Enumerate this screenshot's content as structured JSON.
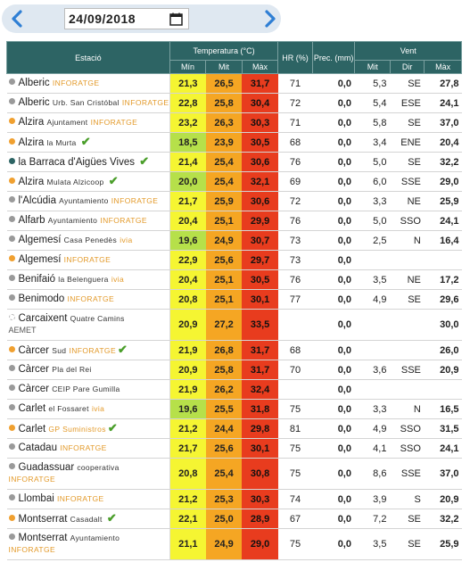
{
  "date": "24/09/2018",
  "header": {
    "station": "Estació",
    "temp": "Temperatura (°C)",
    "hr": "HR (%)",
    "prec": "Prec. (mm)",
    "wind": "Vent",
    "tmin": "Mín",
    "tmit": "Mit",
    "tmax": "Màx",
    "vmit": "Mit",
    "vdir": "Dir",
    "vmax": "Màx"
  },
  "colors": {
    "grey_dot": "#9a9a9a",
    "orange_dot": "#f0a030",
    "teal_dot": "#2d6464",
    "check": "#4a9e2a"
  },
  "rows": [
    {
      "name": "Alberic",
      "sub": "",
      "brand": "INFORATGE",
      "dot": "grey",
      "check": false,
      "tmin": "21,3",
      "tmit": "26,5",
      "tmax": "31,7",
      "hr": "71",
      "prec": "0,0",
      "vmit": "5,3",
      "vdir": "SE",
      "vmax": "27,8"
    },
    {
      "name": "Alberic",
      "sub": "Urb. San Cristóbal",
      "brand": "INFORATGE",
      "dot": "grey",
      "check": false,
      "tmin": "22,8",
      "tmit": "25,8",
      "tmax": "30,4",
      "hr": "72",
      "prec": "0,0",
      "vmit": "5,4",
      "vdir": "ESE",
      "vmax": "24,1"
    },
    {
      "name": "Alzira",
      "sub": "Ajuntament",
      "brand": "INFORATGE",
      "dot": "orange",
      "check": false,
      "tmin": "23,2",
      "tmit": "26,3",
      "tmax": "30,3",
      "hr": "71",
      "prec": "0,0",
      "vmit": "5,8",
      "vdir": "SE",
      "vmax": "37,0"
    },
    {
      "name": "Alzira",
      "sub": "la Murta",
      "brand": "",
      "dot": "orange",
      "check": true,
      "tmin": "18,5",
      "tmit": "23,9",
      "tmax": "30,5",
      "hr": "68",
      "prec": "0,0",
      "vmit": "3,4",
      "vdir": "ENE",
      "vmax": "20,4"
    },
    {
      "name": "la Barraca d'Aigües Vives",
      "sub": "",
      "brand": "",
      "dot": "teal",
      "check": true,
      "tmin": "21,4",
      "tmit": "25,4",
      "tmax": "30,6",
      "hr": "76",
      "prec": "0,0",
      "vmit": "5,0",
      "vdir": "SE",
      "vmax": "32,2"
    },
    {
      "name": "Alzira",
      "sub": "Mulata Alzicoop",
      "brand": "",
      "dot": "orange",
      "check": true,
      "tmin": "20,0",
      "tmit": "25,4",
      "tmax": "32,1",
      "hr": "69",
      "prec": "0,0",
      "vmit": "6,0",
      "vdir": "SSE",
      "vmax": "29,0"
    },
    {
      "name": "l'Alcúdia",
      "sub": "Ayuntamiento",
      "brand": "INFORATGE",
      "dot": "grey",
      "check": false,
      "tmin": "21,7",
      "tmit": "25,9",
      "tmax": "30,6",
      "hr": "72",
      "prec": "0,0",
      "vmit": "3,3",
      "vdir": "NE",
      "vmax": "25,9"
    },
    {
      "name": "Alfarb",
      "sub": "Ayuntamiento",
      "brand": "INFORATGE",
      "dot": "grey",
      "check": false,
      "tmin": "20,4",
      "tmit": "25,1",
      "tmax": "29,9",
      "hr": "76",
      "prec": "0,0",
      "vmit": "5,0",
      "vdir": "SSO",
      "vmax": "24,1"
    },
    {
      "name": "Algemesí",
      "sub": "Casa Penedès",
      "brand": "ivia",
      "dot": "grey",
      "check": false,
      "tmin": "19,6",
      "tmit": "24,9",
      "tmax": "30,7",
      "hr": "73",
      "prec": "0,0",
      "vmit": "2,5",
      "vdir": "N",
      "vmax": "16,4"
    },
    {
      "name": "Algemesí",
      "sub": "",
      "brand": "INFORATGE",
      "dot": "orange",
      "check": false,
      "tmin": "22,9",
      "tmit": "25,6",
      "tmax": "29,7",
      "hr": "73",
      "prec": "0,0",
      "vmit": "",
      "vdir": "",
      "vmax": ""
    },
    {
      "name": "Benifaió",
      "sub": "la Belenguera",
      "brand": "ivia",
      "dot": "grey",
      "check": false,
      "tmin": "20,4",
      "tmit": "25,1",
      "tmax": "30,5",
      "hr": "76",
      "prec": "0,0",
      "vmit": "3,5",
      "vdir": "NE",
      "vmax": "17,2"
    },
    {
      "name": "Benimodo",
      "sub": "",
      "brand": "INFORATGE",
      "dot": "grey",
      "check": false,
      "tmin": "20,8",
      "tmit": "25,1",
      "tmax": "30,1",
      "hr": "77",
      "prec": "0,0",
      "vmit": "4,9",
      "vdir": "SE",
      "vmax": "29,6"
    },
    {
      "name": "Carcaixent",
      "sub": "Quatre Camins",
      "brand": "AEMET",
      "dot": "white",
      "check": false,
      "tall": true,
      "tmin": "20,9",
      "tmit": "27,2",
      "tmax": "33,5",
      "hr": "",
      "prec": "0,0",
      "vmit": "",
      "vdir": "",
      "vmax": "30,0"
    },
    {
      "name": "Càrcer",
      "sub": "Sud",
      "brand": "INFORATGE",
      "dot": "orange",
      "check": true,
      "tmin": "21,9",
      "tmit": "26,8",
      "tmax": "31,7",
      "hr": "68",
      "prec": "0,0",
      "vmit": "",
      "vdir": "",
      "vmax": "26,0"
    },
    {
      "name": "Càrcer",
      "sub": "Pla del Rei",
      "brand": "",
      "dot": "grey",
      "check": false,
      "tmin": "20,9",
      "tmit": "25,8",
      "tmax": "31,7",
      "hr": "70",
      "prec": "0,0",
      "vmit": "3,6",
      "vdir": "SSE",
      "vmax": "20,9"
    },
    {
      "name": "Càrcer",
      "sub": "CEIP Pare Gumilla",
      "brand": "",
      "dot": "grey",
      "check": false,
      "tmin": "21,9",
      "tmit": "26,2",
      "tmax": "32,4",
      "hr": "",
      "prec": "0,0",
      "vmit": "",
      "vdir": "",
      "vmax": ""
    },
    {
      "name": "Carlet",
      "sub": "el Fossaret",
      "brand": "ivia",
      "dot": "grey",
      "check": false,
      "tmin": "19,6",
      "tmit": "25,5",
      "tmax": "31,8",
      "hr": "75",
      "prec": "0,0",
      "vmit": "3,3",
      "vdir": "N",
      "vmax": "16,5"
    },
    {
      "name": "Carlet",
      "sub": "",
      "brand": "GP Suministros",
      "dot": "orange",
      "check": true,
      "tmin": "21,2",
      "tmit": "24,4",
      "tmax": "29,8",
      "hr": "81",
      "prec": "0,0",
      "vmit": "4,9",
      "vdir": "SSO",
      "vmax": "31,5"
    },
    {
      "name": "Catadau",
      "sub": "",
      "brand": "INFORATGE",
      "dot": "grey",
      "check": false,
      "tmin": "21,7",
      "tmit": "25,6",
      "tmax": "30,1",
      "hr": "75",
      "prec": "0,0",
      "vmit": "4,1",
      "vdir": "SSO",
      "vmax": "24,1"
    },
    {
      "name": "Guadassuar",
      "sub": "cooperativa",
      "brand": "INFORATGE",
      "dot": "grey",
      "check": false,
      "tall": true,
      "tmin": "20,8",
      "tmit": "25,4",
      "tmax": "30,8",
      "hr": "75",
      "prec": "0,0",
      "vmit": "8,6",
      "vdir": "SSE",
      "vmax": "37,0"
    },
    {
      "name": "Llombai",
      "sub": "",
      "brand": "INFORATGE",
      "dot": "grey",
      "check": false,
      "tmin": "21,2",
      "tmit": "25,3",
      "tmax": "30,3",
      "hr": "74",
      "prec": "0,0",
      "vmit": "3,9",
      "vdir": "S",
      "vmax": "20,9"
    },
    {
      "name": "Montserrat",
      "sub": "Casadalt",
      "brand": "",
      "dot": "orange",
      "check": true,
      "tmin": "22,1",
      "tmit": "25,0",
      "tmax": "28,9",
      "hr": "67",
      "prec": "0,0",
      "vmit": "7,2",
      "vdir": "SE",
      "vmax": "32,2"
    },
    {
      "name": "Montserrat",
      "sub": "Ayuntamiento",
      "brand": "INFORATGE",
      "dot": "grey",
      "check": false,
      "tall": true,
      "tmin": "21,1",
      "tmit": "24,9",
      "tmax": "29,0",
      "hr": "75",
      "prec": "0,0",
      "vmit": "3,5",
      "vdir": "SE",
      "vmax": "25,9"
    }
  ]
}
